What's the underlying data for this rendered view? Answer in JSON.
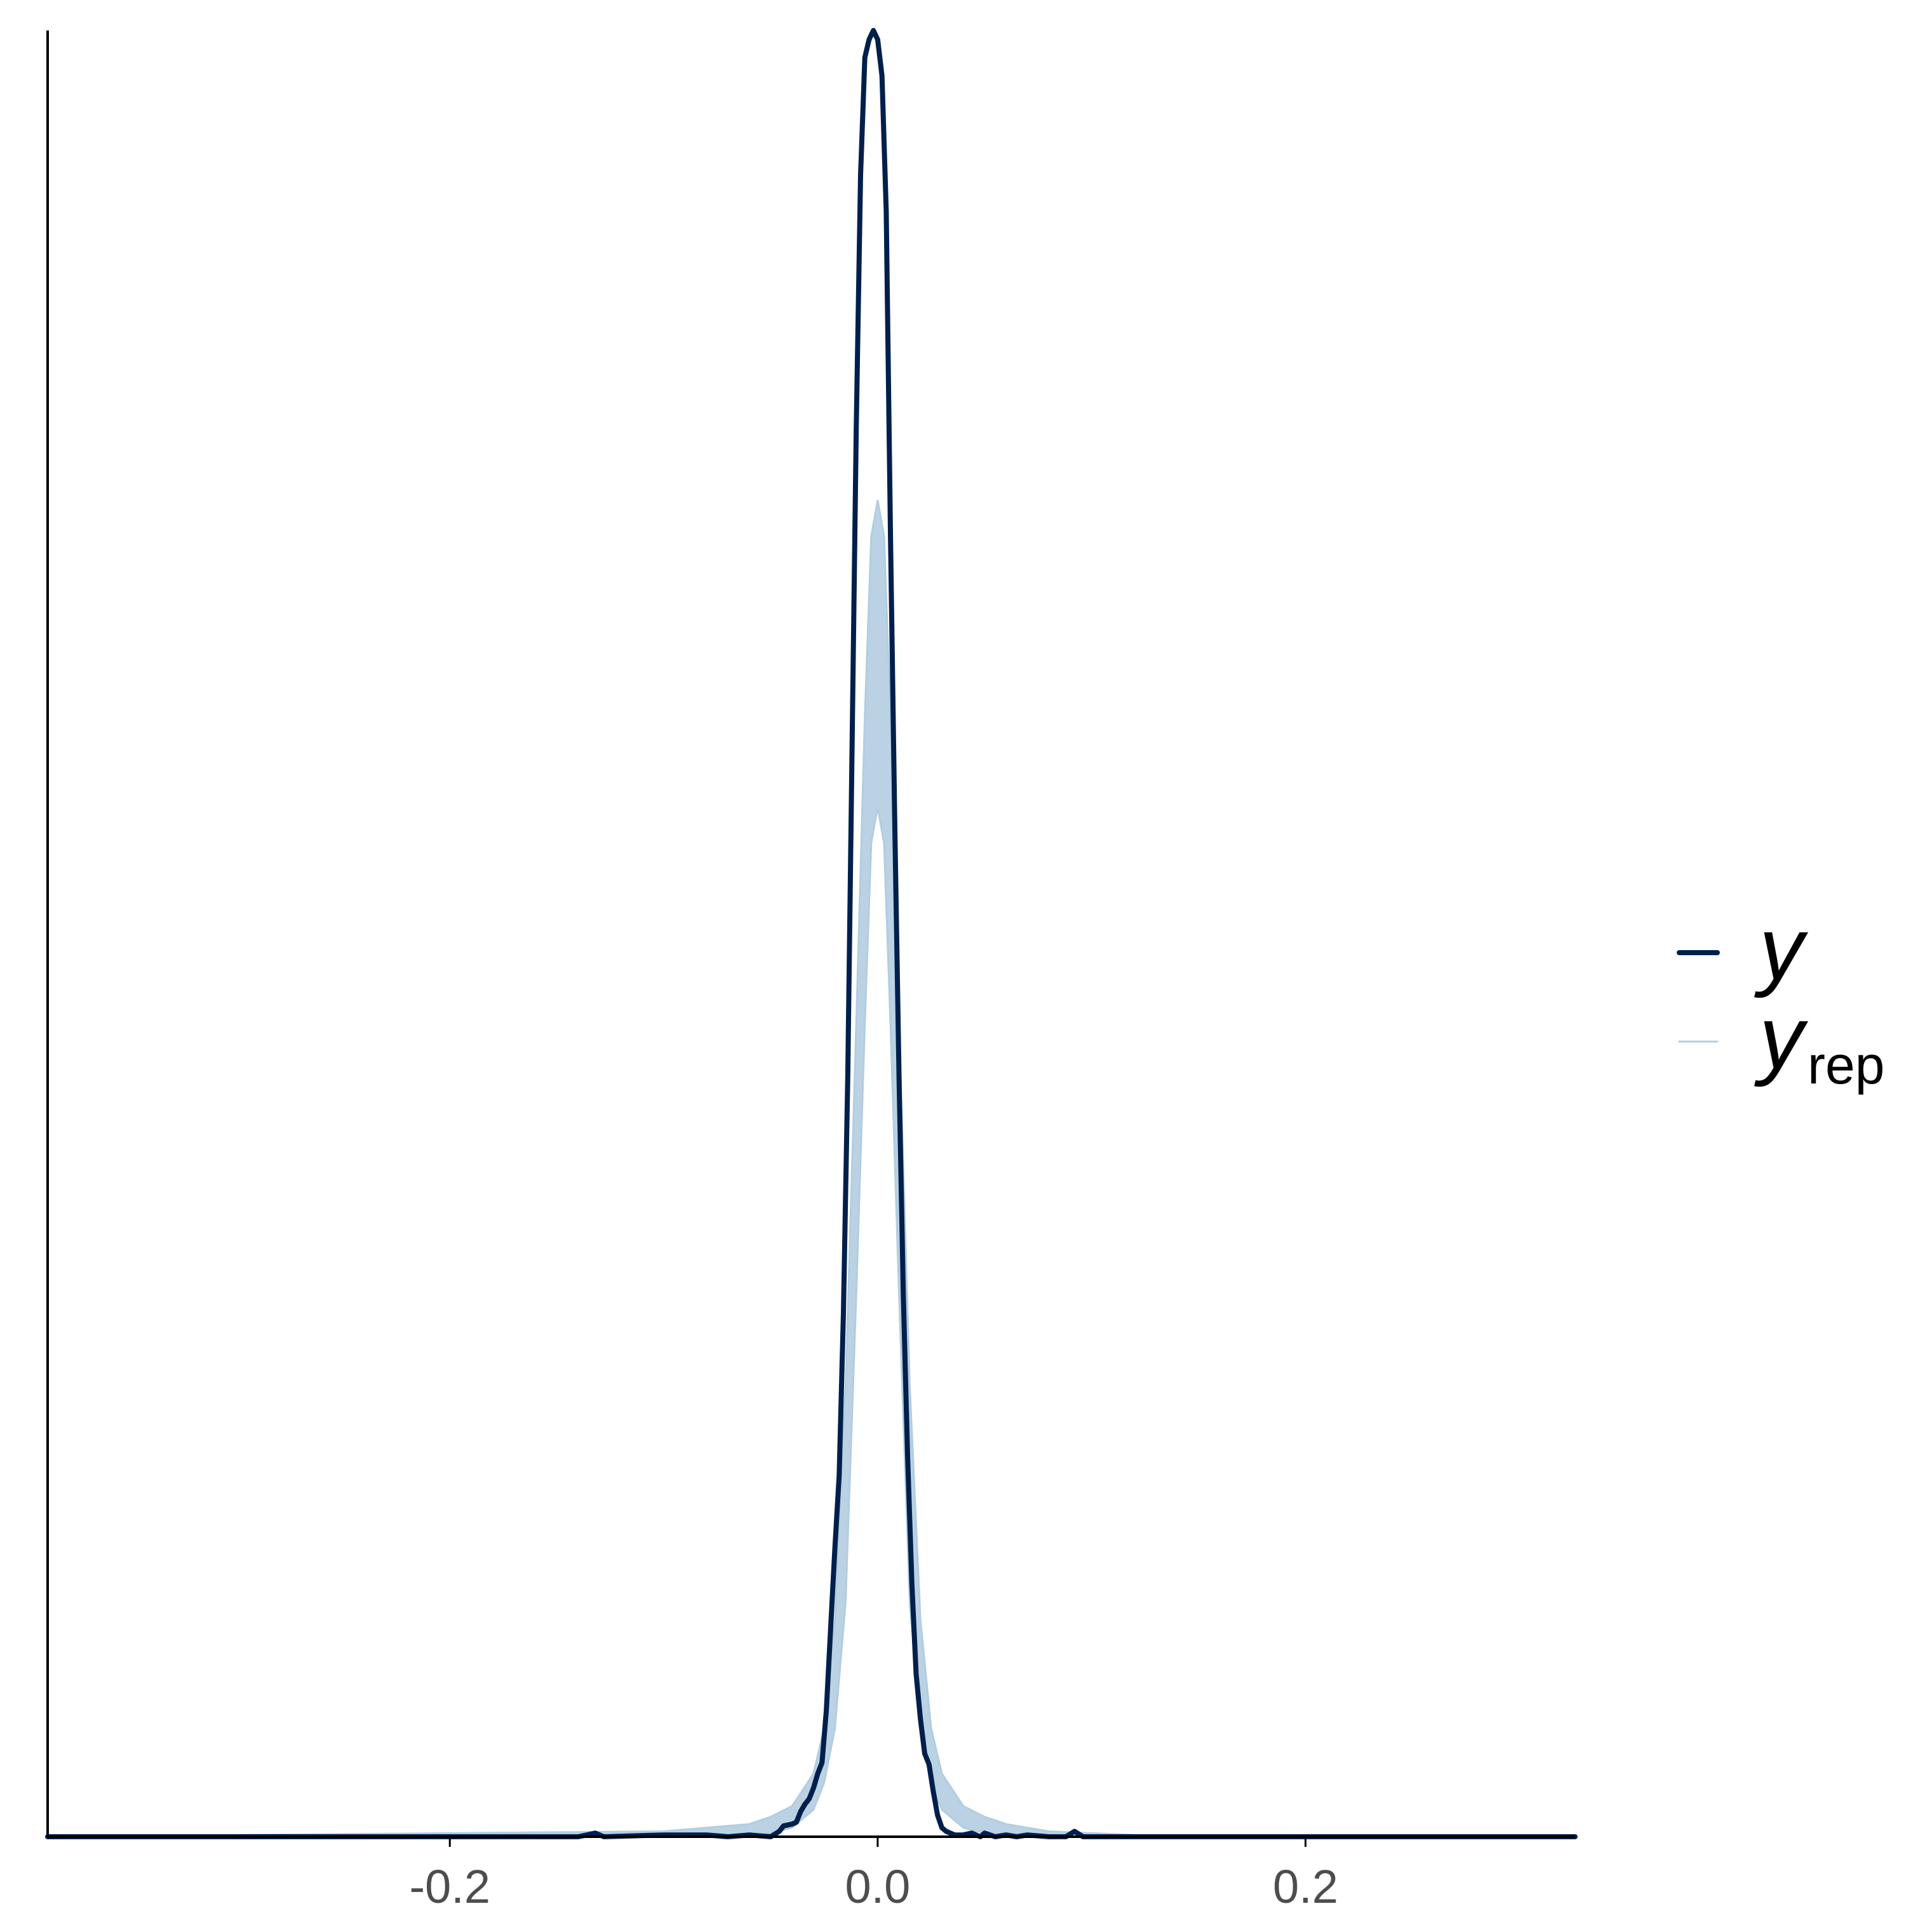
{
  "chart_data": {
    "type": "line",
    "title": "",
    "xlabel": "",
    "ylabel": "",
    "xlim": [
      -0.388,
      0.326
    ],
    "ylim": [
      0,
      1
    ],
    "x_ticks": [
      {
        "value": -0.2,
        "label": "-0.2"
      },
      {
        "value": 0.0,
        "label": "0.0"
      },
      {
        "value": 0.2,
        "label": "0.2"
      }
    ],
    "grid": false,
    "legend_position": "right",
    "series": [
      {
        "name": "y",
        "role": "observed",
        "color": "#011f4b",
        "x": [
          -0.388,
          -0.14,
          -0.132,
          -0.128,
          -0.1,
          -0.08,
          -0.07,
          -0.06,
          -0.05,
          -0.046,
          -0.044,
          -0.04,
          -0.038,
          -0.036,
          -0.034,
          -0.032,
          -0.03,
          -0.028,
          -0.026,
          -0.024,
          -0.022,
          -0.02,
          -0.018,
          -0.016,
          -0.014,
          -0.012,
          -0.01,
          -0.008,
          -0.006,
          -0.004,
          -0.002,
          0.0,
          0.002,
          0.004,
          0.006,
          0.008,
          0.01,
          0.012,
          0.014,
          0.016,
          0.018,
          0.02,
          0.022,
          0.024,
          0.026,
          0.028,
          0.03,
          0.032,
          0.034,
          0.036,
          0.04,
          0.044,
          0.048,
          0.05,
          0.055,
          0.06,
          0.065,
          0.07,
          0.08,
          0.088,
          0.092,
          0.096,
          0.12,
          0.2,
          0.326
        ],
        "y": [
          0,
          0,
          0.002,
          0,
          0.001,
          0.001,
          0,
          0.001,
          0,
          0.003,
          0.006,
          0.007,
          0.008,
          0.014,
          0.018,
          0.021,
          0.027,
          0.035,
          0.041,
          0.07,
          0.115,
          0.16,
          0.2,
          0.29,
          0.42,
          0.6,
          0.78,
          0.92,
          0.985,
          0.995,
          1.0,
          0.995,
          0.975,
          0.9,
          0.72,
          0.56,
          0.42,
          0.3,
          0.21,
          0.14,
          0.09,
          0.065,
          0.046,
          0.04,
          0.025,
          0.012,
          0.005,
          0.003,
          0.002,
          0.001,
          0.001,
          0.002,
          0,
          0.002,
          0,
          0.001,
          0,
          0.001,
          0,
          0,
          0.003,
          0,
          0,
          0,
          0
        ]
      },
      {
        "name": "rep",
        "role": "replicated",
        "color": "#b3cde0",
        "band": {
          "x": [
            -0.3,
            -0.1,
            -0.06,
            -0.05,
            -0.04,
            -0.03,
            -0.025,
            -0.02,
            -0.015,
            -0.01,
            -0.006,
            -0.003,
            0.0,
            0.003,
            0.006,
            0.01,
            0.015,
            0.02,
            0.025,
            0.03,
            0.04,
            0.05,
            0.06,
            0.08,
            0.12,
            0.3
          ],
          "lower": [
            0,
            0,
            0,
            0.002,
            0.005,
            0.015,
            0.03,
            0.06,
            0.13,
            0.3,
            0.45,
            0.55,
            0.57,
            0.55,
            0.45,
            0.3,
            0.13,
            0.06,
            0.03,
            0.015,
            0.005,
            0.002,
            0,
            0,
            0,
            0
          ],
          "upper": [
            0.001,
            0.003,
            0.007,
            0.011,
            0.017,
            0.035,
            0.06,
            0.12,
            0.25,
            0.45,
            0.62,
            0.72,
            0.74,
            0.72,
            0.62,
            0.45,
            0.25,
            0.12,
            0.06,
            0.035,
            0.017,
            0.011,
            0.007,
            0.003,
            0.001,
            0
          ]
        }
      }
    ]
  },
  "legend": {
    "items": [
      {
        "label": "y",
        "sub": "",
        "color": "#011f4b",
        "stroke_width": 8
      },
      {
        "label": "y",
        "sub": "rep",
        "color": "#b3cde0",
        "stroke_width": 3
      }
    ]
  },
  "colors": {
    "axis": "#000000",
    "tick_label": "#4d4d4d",
    "background": "#ffffff"
  }
}
